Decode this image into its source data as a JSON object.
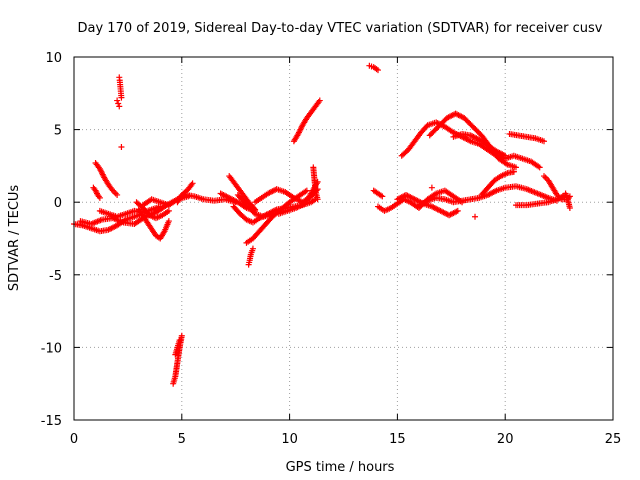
{
  "chart_data": {
    "type": "scatter",
    "title": "Day 170 of 2019, Sidereal Day-to-day VTEC variation (SDTVAR) for receiver cusv",
    "xlabel": "GPS time / hours",
    "ylabel": "SDTVAR / TECUs",
    "xlim": [
      0,
      25
    ],
    "ylim": [
      -15,
      10
    ],
    "xticks": [
      0,
      5,
      10,
      15,
      20,
      25
    ],
    "yticks": [
      -15,
      -10,
      -5,
      0,
      5,
      10
    ],
    "xtick_labels": [
      "0",
      "5",
      "10",
      "15",
      "20",
      "25"
    ],
    "ytick_labels": [
      "-15",
      "-10",
      "-5",
      "0",
      "5",
      "10"
    ],
    "grid": true,
    "marker": "+",
    "series_color": "#ff0000",
    "traces": [
      {
        "name": "t1",
        "x": [
          0,
          0.4,
          0.8,
          1.2,
          1.6,
          2.0,
          2.4,
          2.8,
          3.2
        ],
        "y": [
          -1.5,
          -1.6,
          -1.8,
          -2.0,
          -1.9,
          -1.6,
          -1.2,
          -1.0,
          -0.8
        ]
      },
      {
        "name": "t2",
        "x": [
          0.3,
          0.8,
          1.3,
          1.8,
          2.3,
          2.8,
          3.3,
          3.8,
          4.3,
          4.8,
          5.3
        ],
        "y": [
          -1.3,
          -1.5,
          -1.2,
          -1.1,
          -1.4,
          -1.5,
          -1.0,
          -0.7,
          -0.2,
          0.2,
          0.4
        ]
      },
      {
        "name": "t3",
        "x": [
          1.0,
          1.2,
          1.4,
          1.6,
          1.8,
          2.0
        ],
        "y": [
          2.7,
          2.3,
          1.7,
          1.2,
          0.8,
          0.5
        ]
      },
      {
        "name": "t4",
        "x": [
          0.9,
          1.0,
          1.1,
          1.2
        ],
        "y": [
          1.0,
          0.8,
          0.5,
          0.3
        ]
      },
      {
        "name": "t5",
        "x": [
          1.2,
          1.6,
          2.0,
          2.4,
          2.8,
          3.2,
          3.6,
          4.0
        ],
        "y": [
          -0.6,
          -0.8,
          -1.0,
          -0.8,
          -0.6,
          -0.7,
          -0.5,
          -0.3
        ]
      },
      {
        "name": "t6",
        "x": [
          3.0,
          3.4,
          3.8,
          4.0,
          4.2,
          4.4
        ],
        "y": [
          -0.5,
          -1.4,
          -2.3,
          -2.5,
          -2.0,
          -1.3
        ]
      },
      {
        "name": "t7",
        "x": [
          2.9,
          3.2,
          3.5,
          3.8,
          4.1,
          4.4
        ],
        "y": [
          0.0,
          -0.4,
          -0.9,
          -1.1,
          -0.9,
          -0.6
        ]
      },
      {
        "name": "t8",
        "x": [
          3.2,
          3.6,
          4.0,
          4.4,
          4.8,
          5.2,
          5.6,
          6.0,
          6.5,
          7.0,
          7.5
        ],
        "y": [
          -0.2,
          0.2,
          0.0,
          -0.2,
          0.2,
          0.5,
          0.4,
          0.2,
          0.1,
          0.2,
          0.0
        ]
      },
      {
        "name": "t9",
        "x": [
          2.1,
          2.12,
          2.14,
          2.16,
          2.18,
          2.2
        ],
        "y": [
          8.6,
          8.4,
          8.1,
          7.8,
          7.5,
          7.2
        ]
      },
      {
        "name": "t10",
        "x": [
          2.0,
          2.05,
          2.1
        ],
        "y": [
          7.0,
          6.8,
          6.6
        ]
      },
      {
        "name": "t11",
        "x": [
          2.2
        ],
        "y": [
          3.8
        ]
      },
      {
        "name": "t12",
        "x": [
          4.6,
          4.7,
          4.8,
          4.9,
          5.0
        ],
        "y": [
          -12.5,
          -12.0,
          -11.0,
          -10.0,
          -9.2
        ]
      },
      {
        "name": "t13",
        "x": [
          4.7,
          4.8,
          4.9
        ],
        "y": [
          -10.5,
          -10.0,
          -9.5
        ]
      },
      {
        "name": "t14",
        "x": [
          4.8,
          5.0,
          5.3,
          5.5
        ],
        "y": [
          0.0,
          0.5,
          0.9,
          1.3
        ]
      },
      {
        "name": "t15",
        "x": [
          6.8,
          7.2,
          7.6,
          8.0,
          8.4
        ],
        "y": [
          0.6,
          0.3,
          0.0,
          -0.4,
          -0.6
        ]
      },
      {
        "name": "t16",
        "x": [
          7.2,
          7.5,
          7.8,
          8.1,
          8.4
        ],
        "y": [
          1.8,
          1.2,
          0.6,
          0.0,
          -0.5
        ]
      },
      {
        "name": "t17",
        "x": [
          7.6,
          8.0,
          8.4,
          8.8,
          9.2
        ],
        "y": [
          0.5,
          -0.2,
          -0.8,
          -1.0,
          -0.8
        ]
      },
      {
        "name": "t18",
        "x": [
          7.4,
          7.7,
          8.0,
          8.3,
          8.6,
          9.0,
          9.4,
          9.8,
          10.2,
          10.6,
          11.0,
          11.2
        ],
        "y": [
          -0.3,
          -0.8,
          -1.2,
          -1.4,
          -1.1,
          -0.8,
          -0.5,
          -0.4,
          -0.3,
          -0.2,
          0.0,
          0.2
        ]
      },
      {
        "name": "t19",
        "x": [
          8.0,
          8.3,
          8.6,
          8.9,
          9.2,
          9.6,
          10.0,
          10.4,
          10.8
        ],
        "y": [
          -2.8,
          -2.5,
          -2.0,
          -1.5,
          -1.0,
          -0.5,
          0.0,
          0.4,
          0.8
        ]
      },
      {
        "name": "t20",
        "x": [
          8.1,
          8.15,
          8.2,
          8.3
        ],
        "y": [
          -4.3,
          -4.0,
          -3.6,
          -3.2
        ]
      },
      {
        "name": "t21",
        "x": [
          8.4,
          8.7,
          9.0,
          9.4,
          9.8,
          10.2,
          10.6,
          11.0,
          11.3
        ],
        "y": [
          0.0,
          0.3,
          0.6,
          0.9,
          0.7,
          0.3,
          0.0,
          0.4,
          0.9
        ]
      },
      {
        "name": "t22",
        "x": [
          10.2,
          10.4,
          10.6,
          10.8,
          11.0,
          11.2,
          11.4
        ],
        "y": [
          4.2,
          4.7,
          5.3,
          5.8,
          6.2,
          6.6,
          7.0
        ]
      },
      {
        "name": "t23",
        "x": [
          9.5,
          9.9,
          10.3,
          10.7,
          11.0,
          11.3
        ],
        "y": [
          -0.8,
          -0.6,
          -0.4,
          -0.1,
          0.6,
          1.4
        ]
      },
      {
        "name": "t24",
        "x": [
          11.1,
          11.2,
          11.3
        ],
        "y": [
          2.4,
          0.8,
          0.2
        ]
      },
      {
        "name": "t25",
        "x": [
          13.7,
          13.9,
          14.1
        ],
        "y": [
          9.4,
          9.3,
          9.1
        ]
      },
      {
        "name": "t26",
        "x": [
          13.9,
          14.1,
          14.3
        ],
        "y": [
          0.8,
          0.6,
          0.4
        ]
      },
      {
        "name": "t27",
        "x": [
          14.1,
          14.4,
          14.7,
          15.0,
          15.3,
          15.6,
          16.0,
          16.4,
          16.8,
          17.2,
          17.6,
          18.0
        ],
        "y": [
          -0.3,
          -0.6,
          -0.4,
          -0.1,
          0.2,
          0.0,
          -0.4,
          0.2,
          0.6,
          0.8,
          0.4,
          0.0
        ]
      },
      {
        "name": "t28",
        "x": [
          15.0,
          15.4,
          15.8,
          16.2,
          16.6,
          17.0,
          17.4,
          17.8
        ],
        "y": [
          0.2,
          0.5,
          0.2,
          -0.1,
          -0.3,
          -0.6,
          -0.9,
          -0.6
        ]
      },
      {
        "name": "t29",
        "x": [
          16.0,
          16.4,
          16.8,
          17.2,
          17.6,
          18.0,
          18.4,
          18.8,
          19.2,
          19.6,
          20.0,
          20.5,
          21.0,
          21.5,
          22.0,
          22.4
        ],
        "y": [
          -0.2,
          0.1,
          0.3,
          0.2,
          0.0,
          0.1,
          0.2,
          0.3,
          0.5,
          0.8,
          1.0,
          1.1,
          0.9,
          0.6,
          0.3,
          0.1
        ]
      },
      {
        "name": "t30",
        "x": [
          15.2,
          15.5,
          15.8,
          16.1,
          16.4,
          16.8,
          17.2,
          17.6,
          18.0,
          18.4,
          18.8,
          19.2,
          19.6,
          20.0,
          20.4,
          20.8,
          21.2,
          21.6
        ],
        "y": [
          3.2,
          3.6,
          4.2,
          4.8,
          5.3,
          5.5,
          5.2,
          4.8,
          4.5,
          4.2,
          4.0,
          3.6,
          3.2,
          3.0,
          3.2,
          3.0,
          2.8,
          2.4
        ]
      },
      {
        "name": "t31",
        "x": [
          16.5,
          16.9,
          17.3,
          17.7,
          18.1,
          18.5,
          18.9,
          19.3,
          19.7,
          20.1,
          20.5
        ],
        "y": [
          4.6,
          5.2,
          5.8,
          6.1,
          5.8,
          5.2,
          4.6,
          3.8,
          3.0,
          2.6,
          2.4
        ]
      },
      {
        "name": "t32",
        "x": [
          17.6,
          18.0,
          18.4,
          18.8,
          19.2,
          19.6,
          20.0
        ],
        "y": [
          4.5,
          4.7,
          4.6,
          4.3,
          3.9,
          3.5,
          3.2
        ]
      },
      {
        "name": "t33",
        "x": [
          18.9,
          19.2,
          19.5,
          19.8,
          20.1,
          20.4
        ],
        "y": [
          0.5,
          1.0,
          1.5,
          1.8,
          2.0,
          2.1
        ]
      },
      {
        "name": "t34",
        "x": [
          20.2,
          20.6,
          21.0,
          21.4,
          21.8
        ],
        "y": [
          4.7,
          4.6,
          4.5,
          4.4,
          4.2
        ]
      },
      {
        "name": "t35",
        "x": [
          20.5,
          21.0,
          21.5,
          22.0,
          22.4,
          22.8
        ],
        "y": [
          -0.2,
          -0.2,
          -0.1,
          0.0,
          0.2,
          0.5
        ]
      },
      {
        "name": "t36",
        "x": [
          21.8,
          22.0,
          22.2,
          22.4,
          22.6,
          22.9,
          23.0
        ],
        "y": [
          1.8,
          1.5,
          1.0,
          0.5,
          0.2,
          0.2,
          0.4
        ]
      },
      {
        "name": "t37",
        "x": [
          22.8,
          22.9,
          23.0
        ],
        "y": [
          0.6,
          0.2,
          -0.4
        ]
      },
      {
        "name": "t38",
        "x": [
          18.6
        ],
        "y": [
          -1.0
        ]
      },
      {
        "name": "t39",
        "x": [
          16.6
        ],
        "y": [
          1.0
        ]
      },
      {
        "name": "t40",
        "x": [
          20.4
        ],
        "y": [
          2.1
        ]
      }
    ]
  }
}
